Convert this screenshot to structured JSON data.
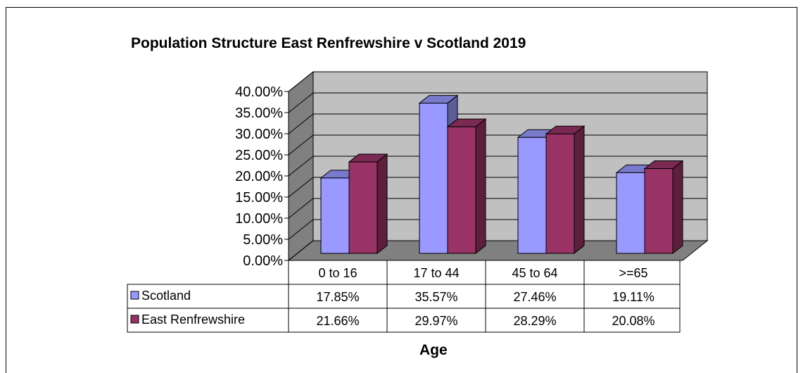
{
  "chart_data": {
    "type": "bar",
    "title": "Population Structure  East Renfrewshire v Scotland 2019",
    "xlabel": "Age",
    "ylabel": "",
    "categories": [
      "0 to 16",
      "17 to 44",
      "45 to 64",
      ">=65"
    ],
    "ylim": [
      0,
      0.4
    ],
    "yticks": [
      "40.00%",
      "35.00%",
      "30.00%",
      "25.00%",
      "20.00%",
      "15.00%",
      "10.00%",
      "5.00%",
      "0.00%"
    ],
    "grid": true,
    "legend": "data-table-left",
    "series": [
      {
        "name": "Scotland",
        "values": [
          0.1785,
          0.3557,
          0.2746,
          0.1911
        ],
        "labels": [
          "17.85%",
          "35.57%",
          "27.46%",
          "19.11%"
        ],
        "color": "#9999ff"
      },
      {
        "name": "East Renfrewshire",
        "values": [
          0.2166,
          0.2997,
          0.2829,
          0.2008
        ],
        "labels": [
          "21.66%",
          "29.97%",
          "28.29%",
          "20.08%"
        ],
        "color": "#993366"
      }
    ]
  }
}
